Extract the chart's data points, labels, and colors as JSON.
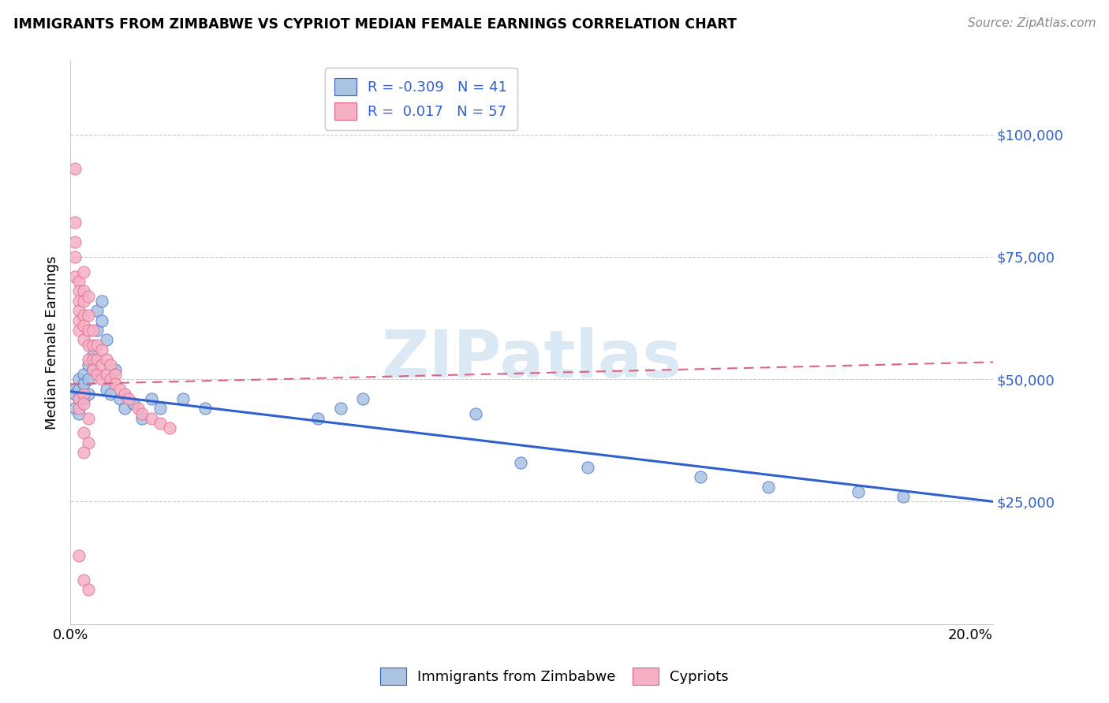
{
  "title": "IMMIGRANTS FROM ZIMBABWE VS CYPRIOT MEDIAN FEMALE EARNINGS CORRELATION CHART",
  "source": "Source: ZipAtlas.com",
  "ylabel": "Median Female Earnings",
  "xlim": [
    0,
    0.205
  ],
  "ylim": [
    0,
    115000
  ],
  "yticks": [
    25000,
    50000,
    75000,
    100000
  ],
  "ytick_labels": [
    "$25,000",
    "$50,000",
    "$75,000",
    "$100,000"
  ],
  "xticks": [
    0.0,
    0.05,
    0.1,
    0.15,
    0.2
  ],
  "xtick_labels": [
    "0.0%",
    "",
    "",
    "",
    "20.0%"
  ],
  "legend_r_blue": "-0.309",
  "legend_n_blue": "41",
  "legend_r_pink": "0.017",
  "legend_n_pink": "57",
  "blue_color": "#aac4e2",
  "pink_color": "#f5b0c5",
  "blue_line_color": "#3060cc",
  "pink_line_color": "#e06080",
  "watermark_color": "#cce0f0",
  "blue_scatter_x": [
    0.001,
    0.001,
    0.001,
    0.002,
    0.002,
    0.002,
    0.002,
    0.003,
    0.003,
    0.003,
    0.004,
    0.004,
    0.004,
    0.005,
    0.005,
    0.006,
    0.006,
    0.007,
    0.007,
    0.008,
    0.008,
    0.009,
    0.01,
    0.011,
    0.012,
    0.014,
    0.016,
    0.018,
    0.02,
    0.025,
    0.03,
    0.055,
    0.06,
    0.065,
    0.09,
    0.1,
    0.115,
    0.14,
    0.155,
    0.175,
    0.185
  ],
  "blue_scatter_y": [
    48000,
    47000,
    44000,
    50000,
    48000,
    46000,
    43000,
    51000,
    49000,
    46000,
    53000,
    50000,
    47000,
    55000,
    52000,
    64000,
    60000,
    66000,
    62000,
    58000,
    48000,
    47000,
    52000,
    46000,
    44000,
    45000,
    42000,
    46000,
    44000,
    46000,
    44000,
    42000,
    44000,
    46000,
    43000,
    33000,
    32000,
    30000,
    28000,
    27000,
    26000
  ],
  "pink_scatter_x": [
    0.001,
    0.001,
    0.001,
    0.001,
    0.001,
    0.002,
    0.002,
    0.002,
    0.002,
    0.002,
    0.002,
    0.003,
    0.003,
    0.003,
    0.003,
    0.003,
    0.003,
    0.004,
    0.004,
    0.004,
    0.004,
    0.004,
    0.005,
    0.005,
    0.005,
    0.005,
    0.006,
    0.006,
    0.006,
    0.007,
    0.007,
    0.007,
    0.008,
    0.008,
    0.009,
    0.009,
    0.01,
    0.01,
    0.011,
    0.012,
    0.013,
    0.015,
    0.016,
    0.018,
    0.02,
    0.022,
    0.002,
    0.003,
    0.002,
    0.003,
    0.004,
    0.003,
    0.004,
    0.003,
    0.002,
    0.003,
    0.004
  ],
  "pink_scatter_y": [
    93000,
    82000,
    78000,
    75000,
    71000,
    70000,
    68000,
    66000,
    64000,
    62000,
    60000,
    72000,
    68000,
    66000,
    63000,
    61000,
    58000,
    67000,
    63000,
    60000,
    57000,
    54000,
    60000,
    57000,
    54000,
    52000,
    57000,
    54000,
    51000,
    56000,
    53000,
    50000,
    54000,
    51000,
    53000,
    50000,
    51000,
    49000,
    48000,
    47000,
    46000,
    44000,
    43000,
    42000,
    41000,
    40000,
    46000,
    47000,
    44000,
    45000,
    42000,
    39000,
    37000,
    35000,
    14000,
    9000,
    7000
  ]
}
